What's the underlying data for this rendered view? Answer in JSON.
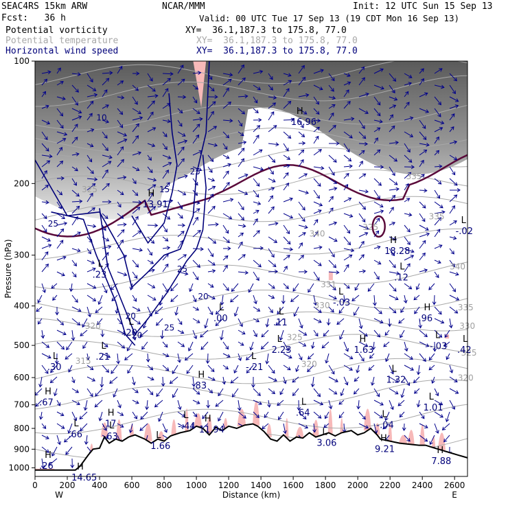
{
  "header": {
    "model": "SEAC4RS 15km ARW",
    "center": "NCAR/MMM",
    "init": "Init: 12 UTC Sun 15 Sep 13",
    "fcst": "Fcst:   36 h",
    "valid": "Valid: 00 UTC Tue 17 Sep 13 (19 CDT Mon 16 Sep 13)",
    "fields": [
      {
        "name": "Potential vorticity",
        "xy": "XY=  36.1,187.3 to 175.8, 77.0"
      },
      {
        "name": "Potential temperature",
        "xy": "XY=  36.1,187.3 to 175.8, 77.0"
      },
      {
        "name": "Horizontal wind speed",
        "xy": "XY=  36.1,187.3 to 175.8, 77.0"
      }
    ]
  },
  "chart_data": {
    "type": "cross-section",
    "xlabel": "Distance (km)",
    "ylabel": "Pressure (hPa)",
    "xlim": [
      0,
      2680
    ],
    "ylim": [
      1050,
      100
    ],
    "x_ticks": [
      "0",
      "200",
      "400",
      "600",
      "800",
      "1000",
      "1200",
      "1400",
      "1600",
      "1800",
      "2000",
      "2200",
      "2400",
      "2600"
    ],
    "y_ticks": [
      "100",
      "200",
      "300",
      "400",
      "500",
      "600",
      "700",
      "800",
      "900",
      "1000"
    ],
    "end_labels": {
      "left": "W",
      "right": "E"
    },
    "terrain_surface_hpa": [
      [
        0,
        1013
      ],
      [
        250,
        1013
      ],
      [
        280,
        990
      ],
      [
        330,
        930
      ],
      [
        360,
        900
      ],
      [
        400,
        895
      ],
      [
        430,
        840
      ],
      [
        460,
        870
      ],
      [
        500,
        850
      ],
      [
        540,
        860
      ],
      [
        580,
        840
      ],
      [
        620,
        830
      ],
      [
        680,
        850
      ],
      [
        720,
        870
      ],
      [
        760,
        850
      ],
      [
        800,
        860
      ],
      [
        840,
        835
      ],
      [
        900,
        820
      ],
      [
        960,
        810
      ],
      [
        1000,
        790
      ],
      [
        1040,
        800
      ],
      [
        1080,
        830
      ],
      [
        1120,
        795
      ],
      [
        1160,
        810
      ],
      [
        1200,
        790
      ],
      [
        1250,
        800
      ],
      [
        1300,
        785
      ],
      [
        1350,
        780
      ],
      [
        1380,
        790
      ],
      [
        1420,
        815
      ],
      [
        1460,
        850
      ],
      [
        1500,
        860
      ],
      [
        1540,
        830
      ],
      [
        1580,
        860
      ],
      [
        1620,
        840
      ],
      [
        1660,
        845
      ],
      [
        1700,
        820
      ],
      [
        1740,
        840
      ],
      [
        1780,
        830
      ],
      [
        1820,
        820
      ],
      [
        1860,
        835
      ],
      [
        1900,
        820
      ],
      [
        1960,
        810
      ],
      [
        2000,
        830
      ],
      [
        2040,
        820
      ],
      [
        2080,
        800
      ],
      [
        2120,
        830
      ],
      [
        2140,
        850
      ],
      [
        2200,
        860
      ],
      [
        2260,
        870
      ],
      [
        2320,
        875
      ],
      [
        2380,
        880
      ],
      [
        2420,
        880
      ],
      [
        2460,
        890
      ],
      [
        2520,
        905
      ],
      [
        2580,
        920
      ],
      [
        2620,
        930
      ],
      [
        2660,
        940
      ],
      [
        2680,
        945
      ]
    ],
    "isentrope_labels": [
      {
        "text": "340",
        "x": 1700,
        "p": 270
      },
      {
        "text": "335",
        "x": 2440,
        "p": 245
      },
      {
        "text": "340",
        "x": 2570,
        "p": 325
      },
      {
        "text": "335",
        "x": 2620,
        "p": 410
      },
      {
        "text": "330",
        "x": 1730,
        "p": 405
      },
      {
        "text": "330",
        "x": 2630,
        "p": 455
      },
      {
        "text": "325",
        "x": 1560,
        "p": 485
      },
      {
        "text": "325",
        "x": 2640,
        "p": 530
      },
      {
        "text": "320",
        "x": 310,
        "p": 455
      },
      {
        "text": "320",
        "x": 1650,
        "p": 565
      },
      {
        "text": "320",
        "x": 2620,
        "p": 610
      },
      {
        "text": "315",
        "x": 250,
        "p": 555
      },
      {
        "text": "325",
        "x": 2030,
        "p": 260
      },
      {
        "text": "331",
        "x": 1770,
        "p": 360
      },
      {
        "text": "335",
        "x": 2300,
        "p": 195
      },
      {
        "text": "325",
        "x": 290,
        "p": 210
      }
    ],
    "speed_contours_labels": [
      {
        "text": "25",
        "x": 960,
        "p": 190
      },
      {
        "text": "15",
        "x": 770,
        "p": 210
      },
      {
        "text": "25",
        "x": 880,
        "p": 330
      },
      {
        "text": "20",
        "x": 1010,
        "p": 385
      },
      {
        "text": "25",
        "x": 800,
        "p": 460
      },
      {
        "text": "20",
        "x": 600,
        "p": 480
      },
      {
        "text": "20",
        "x": 560,
        "p": 430
      },
      {
        "text": "25",
        "x": 80,
        "p": 255
      },
      {
        "text": "10",
        "x": 380,
        "p": 140
      }
    ],
    "extrema": [
      {
        "kind": "H",
        "value": "16.96",
        "x": 1620,
        "p": 135
      },
      {
        "kind": "H",
        "value": "13.91",
        "x": 700,
        "p": 215
      },
      {
        "kind": "H",
        "value": "18.28",
        "x": 2200,
        "p": 280
      },
      {
        "kind": "L",
        "value": ".12",
        "x": 2260,
        "p": 325
      },
      {
        "kind": "L",
        "value": "-.03",
        "x": 1880,
        "p": 375
      },
      {
        "kind": "H",
        "value": ".96",
        "x": 2410,
        "p": 410
      },
      {
        "kind": "L",
        "value": ".00",
        "x": 1140,
        "p": 410
      },
      {
        "kind": "L",
        "value": ".11",
        "x": 1510,
        "p": 420
      },
      {
        "kind": "L",
        "value": "-.02",
        "x": 2640,
        "p": 250
      },
      {
        "kind": "L",
        "value": ".23",
        "x": 390,
        "p": 320
      },
      {
        "kind": "L",
        "value": ".20",
        "x": 580,
        "p": 445
      },
      {
        "kind": "L",
        "value": ".21",
        "x": 410,
        "p": 510
      },
      {
        "kind": "L",
        "value": ".30",
        "x": 110,
        "p": 540
      },
      {
        "kind": "L",
        "value": "2.23",
        "x": 1500,
        "p": 490
      },
      {
        "kind": "H",
        "value": "1.63",
        "x": 2010,
        "p": 490
      },
      {
        "kind": "L",
        "value": "-.03",
        "x": 2480,
        "p": 480
      },
      {
        "kind": "L",
        "value": ".42",
        "x": 2650,
        "p": 490
      },
      {
        "kind": "L",
        "value": "-.21",
        "x": 1340,
        "p": 540
      },
      {
        "kind": "L",
        "value": "1.32",
        "x": 2210,
        "p": 580
      },
      {
        "kind": "H",
        "value": ".83",
        "x": 1010,
        "p": 600
      },
      {
        "kind": "H",
        "value": ".67",
        "x": 60,
        "p": 660
      },
      {
        "kind": "L",
        "value": "1.01",
        "x": 2440,
        "p": 680
      },
      {
        "kind": "L",
        "value": ".64",
        "x": 1650,
        "p": 700
      },
      {
        "kind": "H",
        "value": ".17",
        "x": 450,
        "p": 745
      },
      {
        "kind": "L",
        "value": "-.44",
        "x": 920,
        "p": 755
      },
      {
        "kind": "H",
        "value": "11.94",
        "x": 1050,
        "p": 770
      },
      {
        "kind": "L",
        "value": "-.04",
        "x": 2150,
        "p": 750
      },
      {
        "kind": "L",
        "value": ".66",
        "x": 240,
        "p": 790
      },
      {
        "kind": "L",
        "value": ".63",
        "x": 460,
        "p": 800
      },
      {
        "kind": "L",
        "value": "3.06",
        "x": 1780,
        "p": 830
      },
      {
        "kind": "L",
        "value": "1.66",
        "x": 750,
        "p": 845
      },
      {
        "kind": "H",
        "value": "9.21",
        "x": 2140,
        "p": 860
      },
      {
        "kind": "H",
        "value": "7.88",
        "x": 2490,
        "p": 920
      },
      {
        "kind": "H",
        "value": ".26",
        "x": 60,
        "p": 945
      },
      {
        "kind": "H",
        "value": "14.65",
        "x": 260,
        "p": 1010
      }
    ],
    "tropopause_pv_contour": "2 PVU"
  },
  "colors": {
    "pv_fill": "#f7b9b9",
    "wind_vector": "#00008b",
    "speed_contour": "#00007a",
    "isentrope": "#a8a8a8",
    "tropopause": "#5a0a3a",
    "terrain": "#000000"
  }
}
